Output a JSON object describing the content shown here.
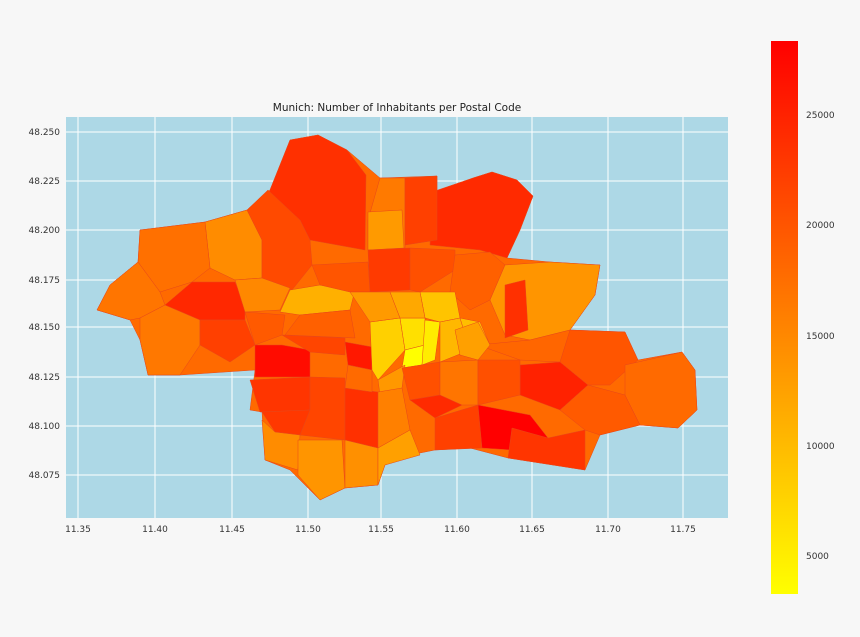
{
  "chart_data": {
    "type": "choropleth",
    "title": "Munich: Number of Inhabitants per Postal Code",
    "xlabel": "",
    "ylabel": "",
    "xlim": [
      11.345,
      11.78
    ],
    "ylim": [
      48.052,
      48.257
    ],
    "x_ticks": [
      "11.35",
      "11.40",
      "11.45",
      "11.50",
      "11.55",
      "11.60",
      "11.65",
      "11.70",
      "11.75"
    ],
    "y_ticks": [
      "48.075",
      "48.100",
      "48.125",
      "48.150",
      "48.175",
      "48.200",
      "48.225",
      "48.250"
    ],
    "grid": true,
    "background_color": "#add8e6",
    "colormap": "autumn_r (yellow to red)",
    "colormap_stops": [
      "#ffff00",
      "#ff0000"
    ],
    "colorbar": {
      "range": [
        3200,
        28300
      ],
      "ticks": [
        "5000",
        "10000",
        "15000",
        "20000",
        "25000"
      ],
      "placement": "right"
    },
    "regions_note": "approximately 75 postal-code polygons; darkest red in north/south-east edges, yellow in the city centre"
  }
}
